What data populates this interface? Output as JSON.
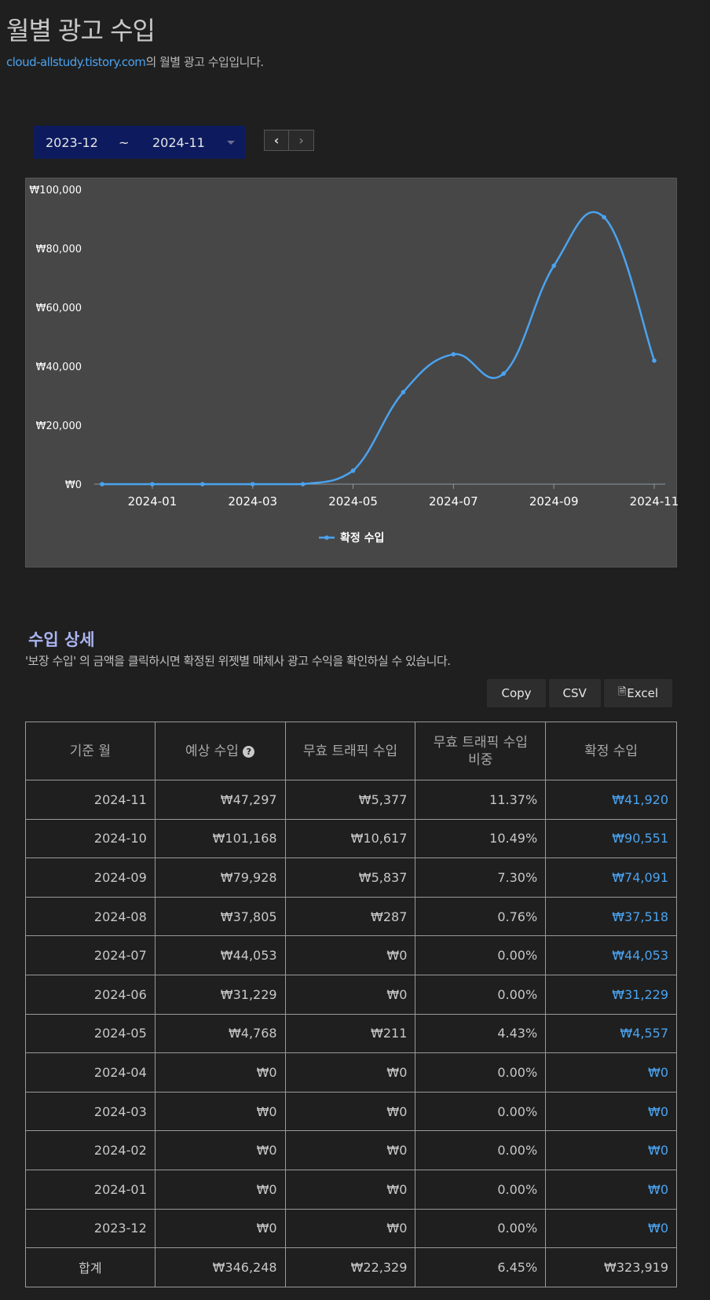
{
  "header": {
    "title": "월별 광고 수입",
    "site_link": "cloud-allstudy.tistory.com",
    "subtitle_suffix": "의 월별 광고 수입입니다."
  },
  "range": {
    "start": "2023-12",
    "separator": "~",
    "end": "2024-11",
    "prev_icon": "chevron-left-icon",
    "next_icon": "chevron-right-icon"
  },
  "colors": {
    "accent": "#4aa3f0",
    "range_bg": "#0d1b5e",
    "section_title": "#aab4f0"
  },
  "chart_data": {
    "type": "line",
    "x": [
      "2023-12",
      "2024-01",
      "2024-02",
      "2024-03",
      "2024-04",
      "2024-05",
      "2024-06",
      "2024-07",
      "2024-08",
      "2024-09",
      "2024-10",
      "2024-11"
    ],
    "x_tick_labels": [
      "2024-01",
      "2024-03",
      "2024-05",
      "2024-07",
      "2024-09",
      "2024-11"
    ],
    "series": [
      {
        "name": "확정 수입",
        "values": [
          0,
          0,
          0,
          0,
          0,
          4557,
          31229,
          44053,
          37518,
          74091,
          90551,
          41920
        ]
      }
    ],
    "y_tick_labels": [
      "₩0",
      "₩20,000",
      "₩40,000",
      "₩60,000",
      "₩80,000",
      "₩100,000"
    ],
    "ylim": [
      0,
      100000
    ],
    "legend_position": "bottom",
    "smooth": true
  },
  "details": {
    "title": "수입 상세",
    "description": "'보장 수입' 의 금액을 클릭하시면 확정된 위젯별 매체사 광고 수익을 확인하실 수 있습니다.",
    "buttons": {
      "copy": "Copy",
      "csv": "CSV",
      "excel": "Excel"
    },
    "columns": [
      "기준 월",
      "예상 수입",
      "무효 트래픽 수입",
      "무효 트래픽 수입 비중",
      "확정 수입"
    ],
    "rows": [
      [
        "2024-11",
        "₩47,297",
        "₩5,377",
        "11.37%",
        "₩41,920"
      ],
      [
        "2024-10",
        "₩101,168",
        "₩10,617",
        "10.49%",
        "₩90,551"
      ],
      [
        "2024-09",
        "₩79,928",
        "₩5,837",
        "7.30%",
        "₩74,091"
      ],
      [
        "2024-08",
        "₩37,805",
        "₩287",
        "0.76%",
        "₩37,518"
      ],
      [
        "2024-07",
        "₩44,053",
        "₩0",
        "0.00%",
        "₩44,053"
      ],
      [
        "2024-06",
        "₩31,229",
        "₩0",
        "0.00%",
        "₩31,229"
      ],
      [
        "2024-05",
        "₩4,768",
        "₩211",
        "4.43%",
        "₩4,557"
      ],
      [
        "2024-04",
        "₩0",
        "₩0",
        "0.00%",
        "₩0"
      ],
      [
        "2024-03",
        "₩0",
        "₩0",
        "0.00%",
        "₩0"
      ],
      [
        "2024-02",
        "₩0",
        "₩0",
        "0.00%",
        "₩0"
      ],
      [
        "2024-01",
        "₩0",
        "₩0",
        "0.00%",
        "₩0"
      ],
      [
        "2023-12",
        "₩0",
        "₩0",
        "0.00%",
        "₩0"
      ]
    ],
    "total": [
      "합계",
      "₩346,248",
      "₩22,329",
      "6.45%",
      "₩323,919"
    ]
  }
}
